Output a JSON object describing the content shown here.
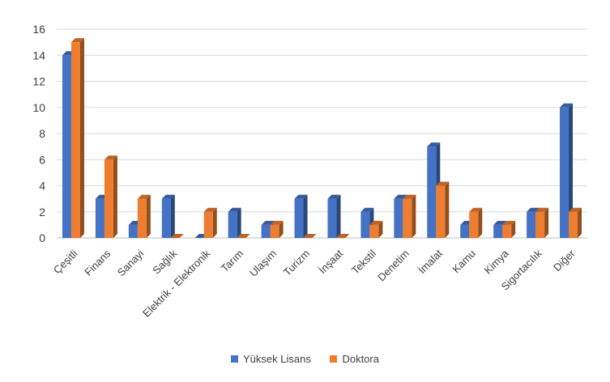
{
  "chart_data": {
    "type": "bar",
    "categories": [
      "Çeşitli",
      "Finans",
      "Sanayi",
      "Sağlık",
      "Elektrik - Elektronik",
      "Tarım",
      "Ulaşım",
      "Turizm",
      "İnşaat",
      "Tekstil",
      "Denetim",
      "İmalat",
      "Kamu",
      "Kimya",
      "Sigortacılık",
      "Diğer"
    ],
    "series": [
      {
        "name": "Yüksek Lisans",
        "color": "#4472C4",
        "values": [
          14,
          3,
          1,
          3,
          0,
          2,
          1,
          3,
          3,
          2,
          3,
          7,
          1,
          1,
          2,
          10
        ]
      },
      {
        "name": "Doktora",
        "color": "#ED7D31",
        "values": [
          15,
          6,
          3,
          0,
          2,
          0,
          1,
          0,
          0,
          1,
          3,
          4,
          2,
          1,
          2,
          2
        ]
      }
    ],
    "ylim": [
      0,
      16
    ],
    "yticks": [
      "0",
      "2",
      "4",
      "6",
      "8",
      "10",
      "12",
      "14",
      "16"
    ],
    "grid": true,
    "legend_position": "bottom"
  }
}
